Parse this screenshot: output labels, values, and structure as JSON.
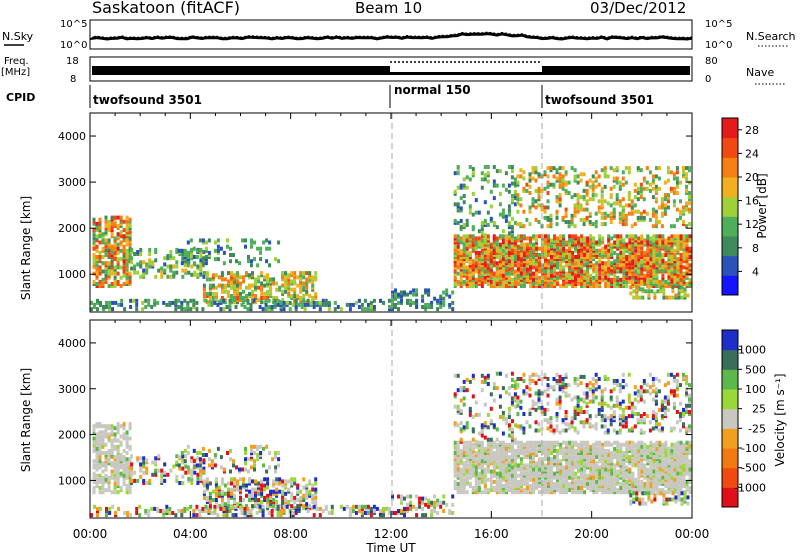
{
  "header": {
    "title": "Saskatoon (fitACF)",
    "beam": "Beam 10",
    "date": "03/Dec/2012"
  },
  "noise_panel": {
    "left_label": "N.Sky",
    "left_ticks": [
      "10^5",
      "10^0"
    ],
    "right_label": "N.Search",
    "right_ticks": [
      "10^5",
      "10^0"
    ]
  },
  "freq_panel": {
    "left_label_1": "Freq.",
    "left_label_2": "[MHz]",
    "left_ticks": [
      "18",
      "8"
    ],
    "right_label": "Nave",
    "right_ticks": [
      "80",
      "0"
    ]
  },
  "cpid": {
    "label": "CPID",
    "segments": [
      {
        "label": "twofsound 3501",
        "start_hour": 0
      },
      {
        "label": "normal 150",
        "start_hour": 12
      },
      {
        "label": "twofsound 3501",
        "start_hour": 18
      }
    ]
  },
  "chart_data": [
    {
      "type": "heatmap",
      "title": "Power",
      "ylabel": "Slant Range [km]",
      "xlabel": "",
      "xlim": [
        0,
        24
      ],
      "ylim": [
        180,
        4500
      ],
      "y_ticks": [
        "1000",
        "2000",
        "3000",
        "4000"
      ],
      "colorbar": {
        "label": "Power [dB]",
        "ticks": [
          "4",
          "8",
          "12",
          "16",
          "20",
          "24",
          "28"
        ],
        "range": [
          0,
          30
        ],
        "colors": [
          "#1414ff",
          "#2a52b8",
          "#3f8a5a",
          "#4fae5a",
          "#9ed03a",
          "#f0b020",
          "#f57f12",
          "#f04a12",
          "#e41a1c"
        ]
      },
      "mode_change_hours": [
        12,
        18
      ]
    },
    {
      "type": "heatmap",
      "title": "Velocity",
      "ylabel": "Slant Range [km]",
      "xlabel": "Time UT",
      "xlim": [
        0,
        24
      ],
      "ylim": [
        180,
        4500
      ],
      "y_ticks": [
        "1000",
        "2000",
        "3000",
        "4000"
      ],
      "x_ticks": [
        "00:00",
        "04:00",
        "08:00",
        "12:00",
        "16:00",
        "20:00",
        "00:00"
      ],
      "colorbar": {
        "label": "Velocity [m s⁻¹]",
        "ticks": [
          "1000",
          "500",
          "100",
          "25",
          "-25",
          "-100",
          "-500",
          "-1000"
        ],
        "colors": [
          "#1e2ec8",
          "#3a6e5a",
          "#5cb84a",
          "#9ad83a",
          "#c8c8c0",
          "#f0a020",
          "#f07a10",
          "#f04a10",
          "#e0101a"
        ]
      },
      "mode_change_hours": [
        12,
        18
      ]
    }
  ]
}
